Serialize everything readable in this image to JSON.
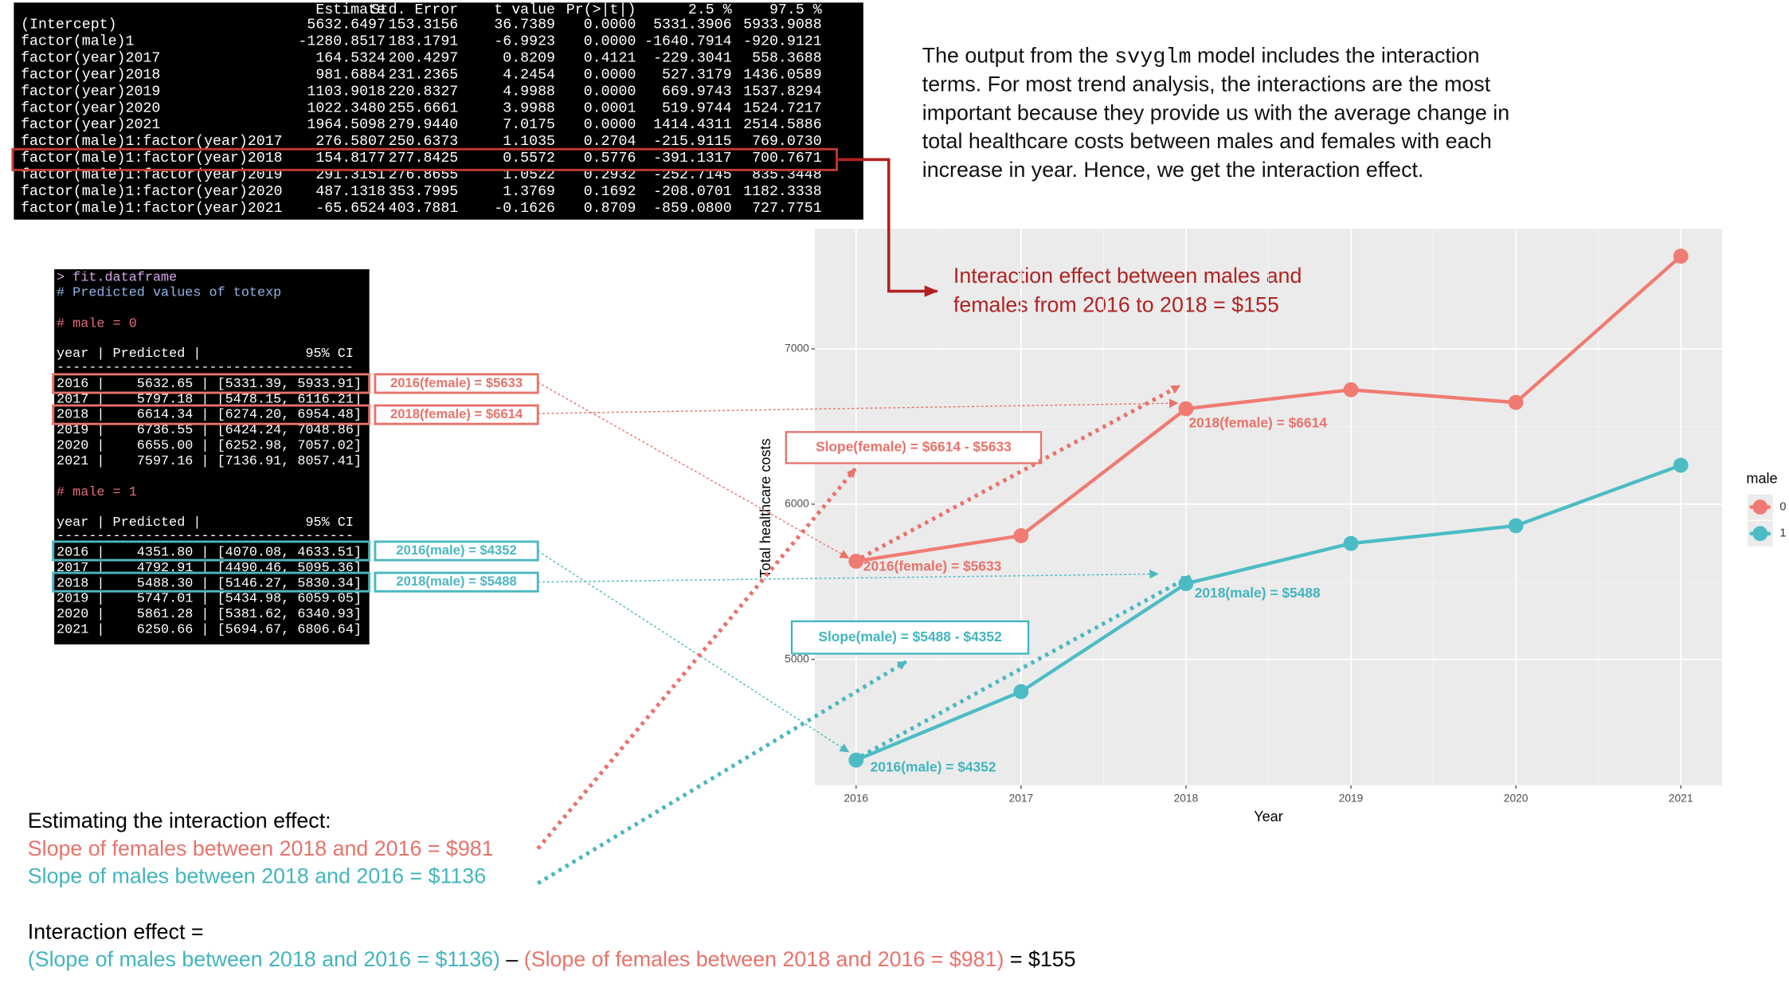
{
  "regression_table": {
    "columns": [
      "Estimate",
      "Std. Error",
      "t value",
      "Pr(>|t|)",
      "2.5 %",
      "97.5 %"
    ],
    "rows": [
      [
        "(Intercept)",
        "5632.6497",
        "153.3156",
        "36.7389",
        "0.0000",
        "5331.3906",
        "5933.9088"
      ],
      [
        "factor(male)1",
        "-1280.8517",
        "183.1791",
        "-6.9923",
        "0.0000",
        "-1640.7914",
        "-920.9121"
      ],
      [
        "factor(year)2017",
        "164.5324",
        "200.4297",
        "0.8209",
        "0.4121",
        "-229.3041",
        "558.3688"
      ],
      [
        "factor(year)2018",
        "981.6884",
        "231.2365",
        "4.2454",
        "0.0000",
        "527.3179",
        "1436.0589"
      ],
      [
        "factor(year)2019",
        "1103.9018",
        "220.8327",
        "4.9988",
        "0.0000",
        "669.9743",
        "1537.8294"
      ],
      [
        "factor(year)2020",
        "1022.3480",
        "255.6661",
        "3.9988",
        "0.0001",
        "519.9744",
        "1524.7217"
      ],
      [
        "factor(year)2021",
        "1964.5098",
        "279.9440",
        "7.0175",
        "0.0000",
        "1414.4311",
        "2514.5886"
      ],
      [
        "factor(male)1:factor(year)2017",
        "276.5807",
        "250.6373",
        "1.1035",
        "0.2704",
        "-215.9115",
        "769.0730"
      ],
      [
        "factor(male)1:factor(year)2018",
        "154.8177",
        "277.8425",
        "0.5572",
        "0.5776",
        "-391.1317",
        "700.7671"
      ],
      [
        "factor(male)1:factor(year)2019",
        "291.3151",
        "276.8655",
        "1.0522",
        "0.2932",
        "-252.7145",
        "835.3448"
      ],
      [
        "factor(male)1:factor(year)2020",
        "487.1318",
        "353.7995",
        "1.3769",
        "0.1692",
        "-208.0701",
        "1182.3338"
      ],
      [
        "factor(male)1:factor(year)2021",
        "-65.6524",
        "403.7881",
        "-0.1626",
        "0.8709",
        "-859.0800",
        "727.7751"
      ]
    ]
  },
  "description": {
    "first_line": [
      "The output from the ",
      "svyglm",
      " model includes the interaction"
    ],
    "lines": [
      "terms. For most trend analysis, the interactions are the most",
      "important because they provide us with the average change in",
      "total healthcare costs between males and females with each",
      "increase in year. Hence, we get the interaction effect."
    ]
  },
  "console": {
    "command": "> fit.dataframe",
    "comment": "# Predicted values of totexp",
    "groups": [
      {
        "label": "# male = 0",
        "header": "year | Predicted |             95% CI",
        "rule": "-------------------------------------",
        "rows": [
          "2016 |    5632.65 | [5331.39, 5933.91]",
          "2017 |    5797.18 | [5478.15, 6116.21]",
          "2018 |    6614.34 | [6274.20, 6954.48]",
          "2019 |    6736.55 | [6424.24, 7048.86]",
          "2020 |    6655.00 | [6252.98, 7057.02]",
          "2021 |    7597.16 | [7136.91, 8057.41]"
        ]
      },
      {
        "label": "# male = 1",
        "header": "year | Predicted |             95% CI",
        "rule": "-------------------------------------",
        "rows": [
          "2016 |    4351.80 | [4070.08, 4633.51]",
          "2017 |    4792.91 | [4490.46, 5095.36]",
          "2018 |    5488.30 | [5146.27, 5830.34]",
          "2019 |    5747.01 | [5434.98, 6059.05]",
          "2020 |    5861.28 | [5381.62, 6340.93]",
          "2021 |    6250.66 | [5694.67, 6806.64]"
        ]
      }
    ],
    "callouts": [
      "2016(female) = $5633",
      "2018(female) = $6614",
      "2016(male) = $4352",
      "2018(male) = $5488"
    ]
  },
  "interaction_note": [
    "Interaction effect between males and",
    "females from 2016 to 2018 = $155"
  ],
  "chart_data": {
    "type": "line",
    "x": [
      2016,
      2017,
      2018,
      2019,
      2020,
      2021
    ],
    "series": [
      {
        "name": "0",
        "color": "#f07b72",
        "values": [
          5632.65,
          5797.18,
          6614.34,
          6736.55,
          6655.0,
          7597.16
        ]
      },
      {
        "name": "1",
        "color": "#4cbcc4",
        "values": [
          4351.8,
          4792.91,
          5488.3,
          5747.01,
          5861.28,
          6250.66
        ]
      }
    ],
    "xlim": [
      2015.75,
      2021.25
    ],
    "ylim": [
      4190,
      7773
    ],
    "xticks": [
      2016,
      2017,
      2018,
      2019,
      2020,
      2021
    ],
    "yticks": [
      5000,
      6000,
      7000
    ],
    "x_label": "Year",
    "y_label": "Total healthcare costs",
    "legend_title": "male",
    "legend": "right",
    "grid": true,
    "annotations": [
      "2018(female) = $6614",
      "2016(female) = $5633",
      "2018(male) = $5488",
      "2016(male) = $4352",
      "Slope(female) = $6614 - $5633",
      "Slope(male) = $5488 - $4352"
    ]
  },
  "estimation": {
    "heading": "Estimating the interaction effect:",
    "female_slope": "Slope of females between 2018 and 2016 = $981",
    "male_slope": "Slope of males between 2018 and 2016 = $1136",
    "formula_label": "Interaction effect =",
    "formula": [
      "(Slope of males between 2018 and 2016 = $1136)",
      " – ",
      "(Slope of females between 2018 and 2016 = $981)",
      " = $155"
    ]
  }
}
